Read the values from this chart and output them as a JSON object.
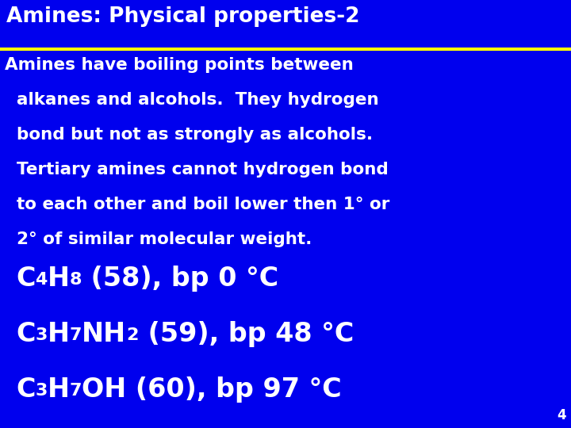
{
  "bg_color": "#0000EE",
  "title": "Amines: Physical properties-2",
  "title_color": "#FFFFFF",
  "separator_color": "#FFFF00",
  "body_text_color": "#FFFFFF",
  "body_lines": [
    "Amines have boiling points between",
    "  alkanes and alcohols.  They hydrogen",
    "  bond but not as strongly as alcohols.",
    "  Tertiary amines cannot hydrogen bond",
    "  to each other and boil lower then 1° or",
    "  2° of similar molecular weight."
  ],
  "page_number": "4",
  "page_number_color": "#FFFFFF",
  "title_fontsize": 19,
  "body_fontsize": 15.5,
  "formula_fontsize": 24,
  "formula_sub_fontsize": 16
}
